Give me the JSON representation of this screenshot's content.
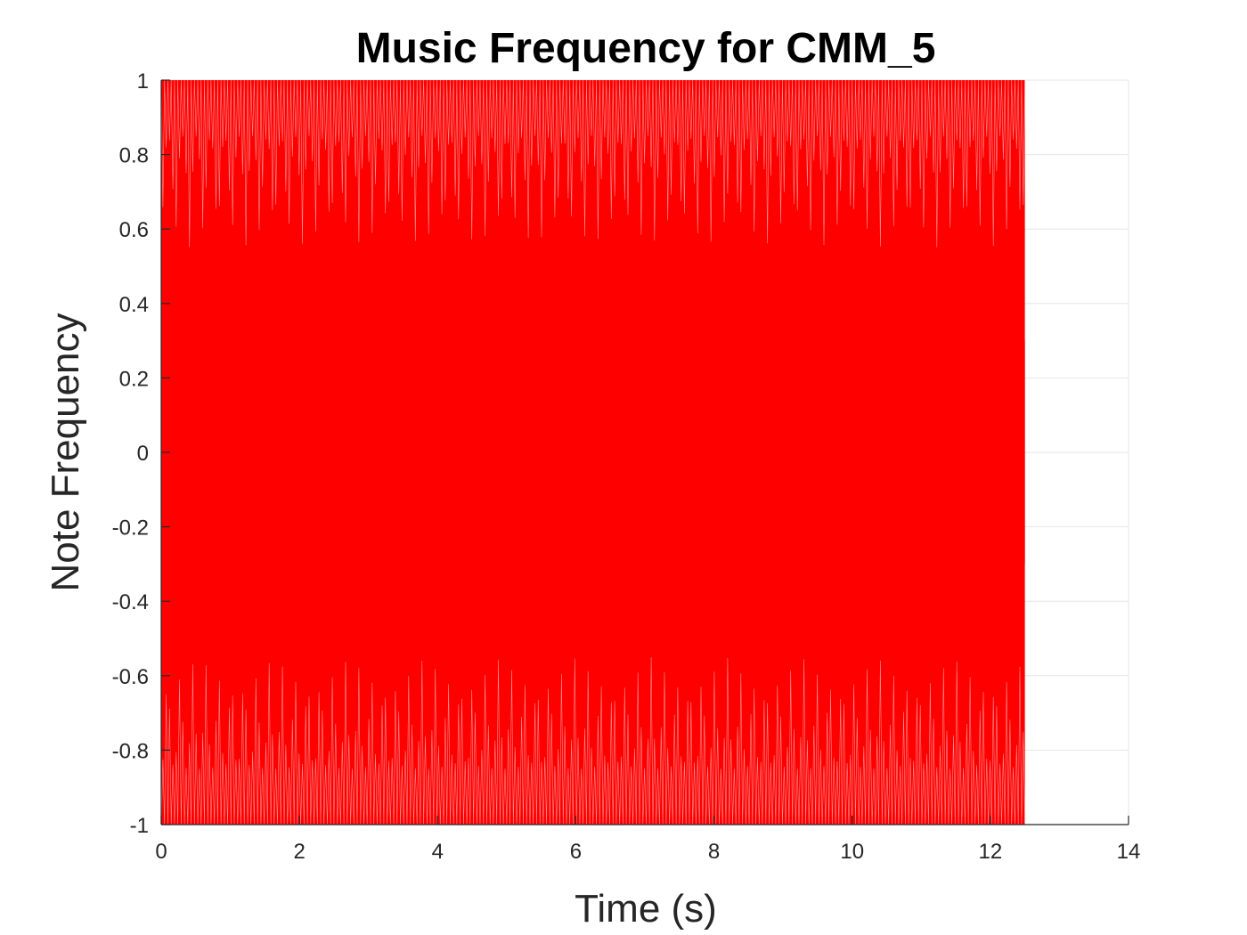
{
  "chart_data": {
    "type": "line",
    "title": "Music Frequency for CMM_5",
    "xlabel": "Time (s)",
    "ylabel": "Note Frequency",
    "xlim": [
      0,
      14
    ],
    "ylim": [
      -1,
      1
    ],
    "x_ticks": [
      0,
      2,
      4,
      6,
      8,
      10,
      12,
      14
    ],
    "y_ticks": [
      -1,
      -0.8,
      -0.6,
      -0.4,
      -0.2,
      0,
      0.2,
      0.4,
      0.6,
      0.8,
      1
    ],
    "x_tick_labels": [
      "0",
      "2",
      "4",
      "6",
      "8",
      "10",
      "12",
      "14"
    ],
    "y_tick_labels": [
      "-1",
      "-0.8",
      "-0.6",
      "-0.4",
      "-0.2",
      "0",
      "0.2",
      "0.4",
      "0.6",
      "0.8",
      "1"
    ],
    "grid": true,
    "legend": "none",
    "series": [
      {
        "color": "#ff0000",
        "x_range": [
          0,
          12.5
        ],
        "amplitude": 1,
        "description_of_shape": "dense oscillating waveform filling the band from -1 to 1"
      }
    ]
  }
}
